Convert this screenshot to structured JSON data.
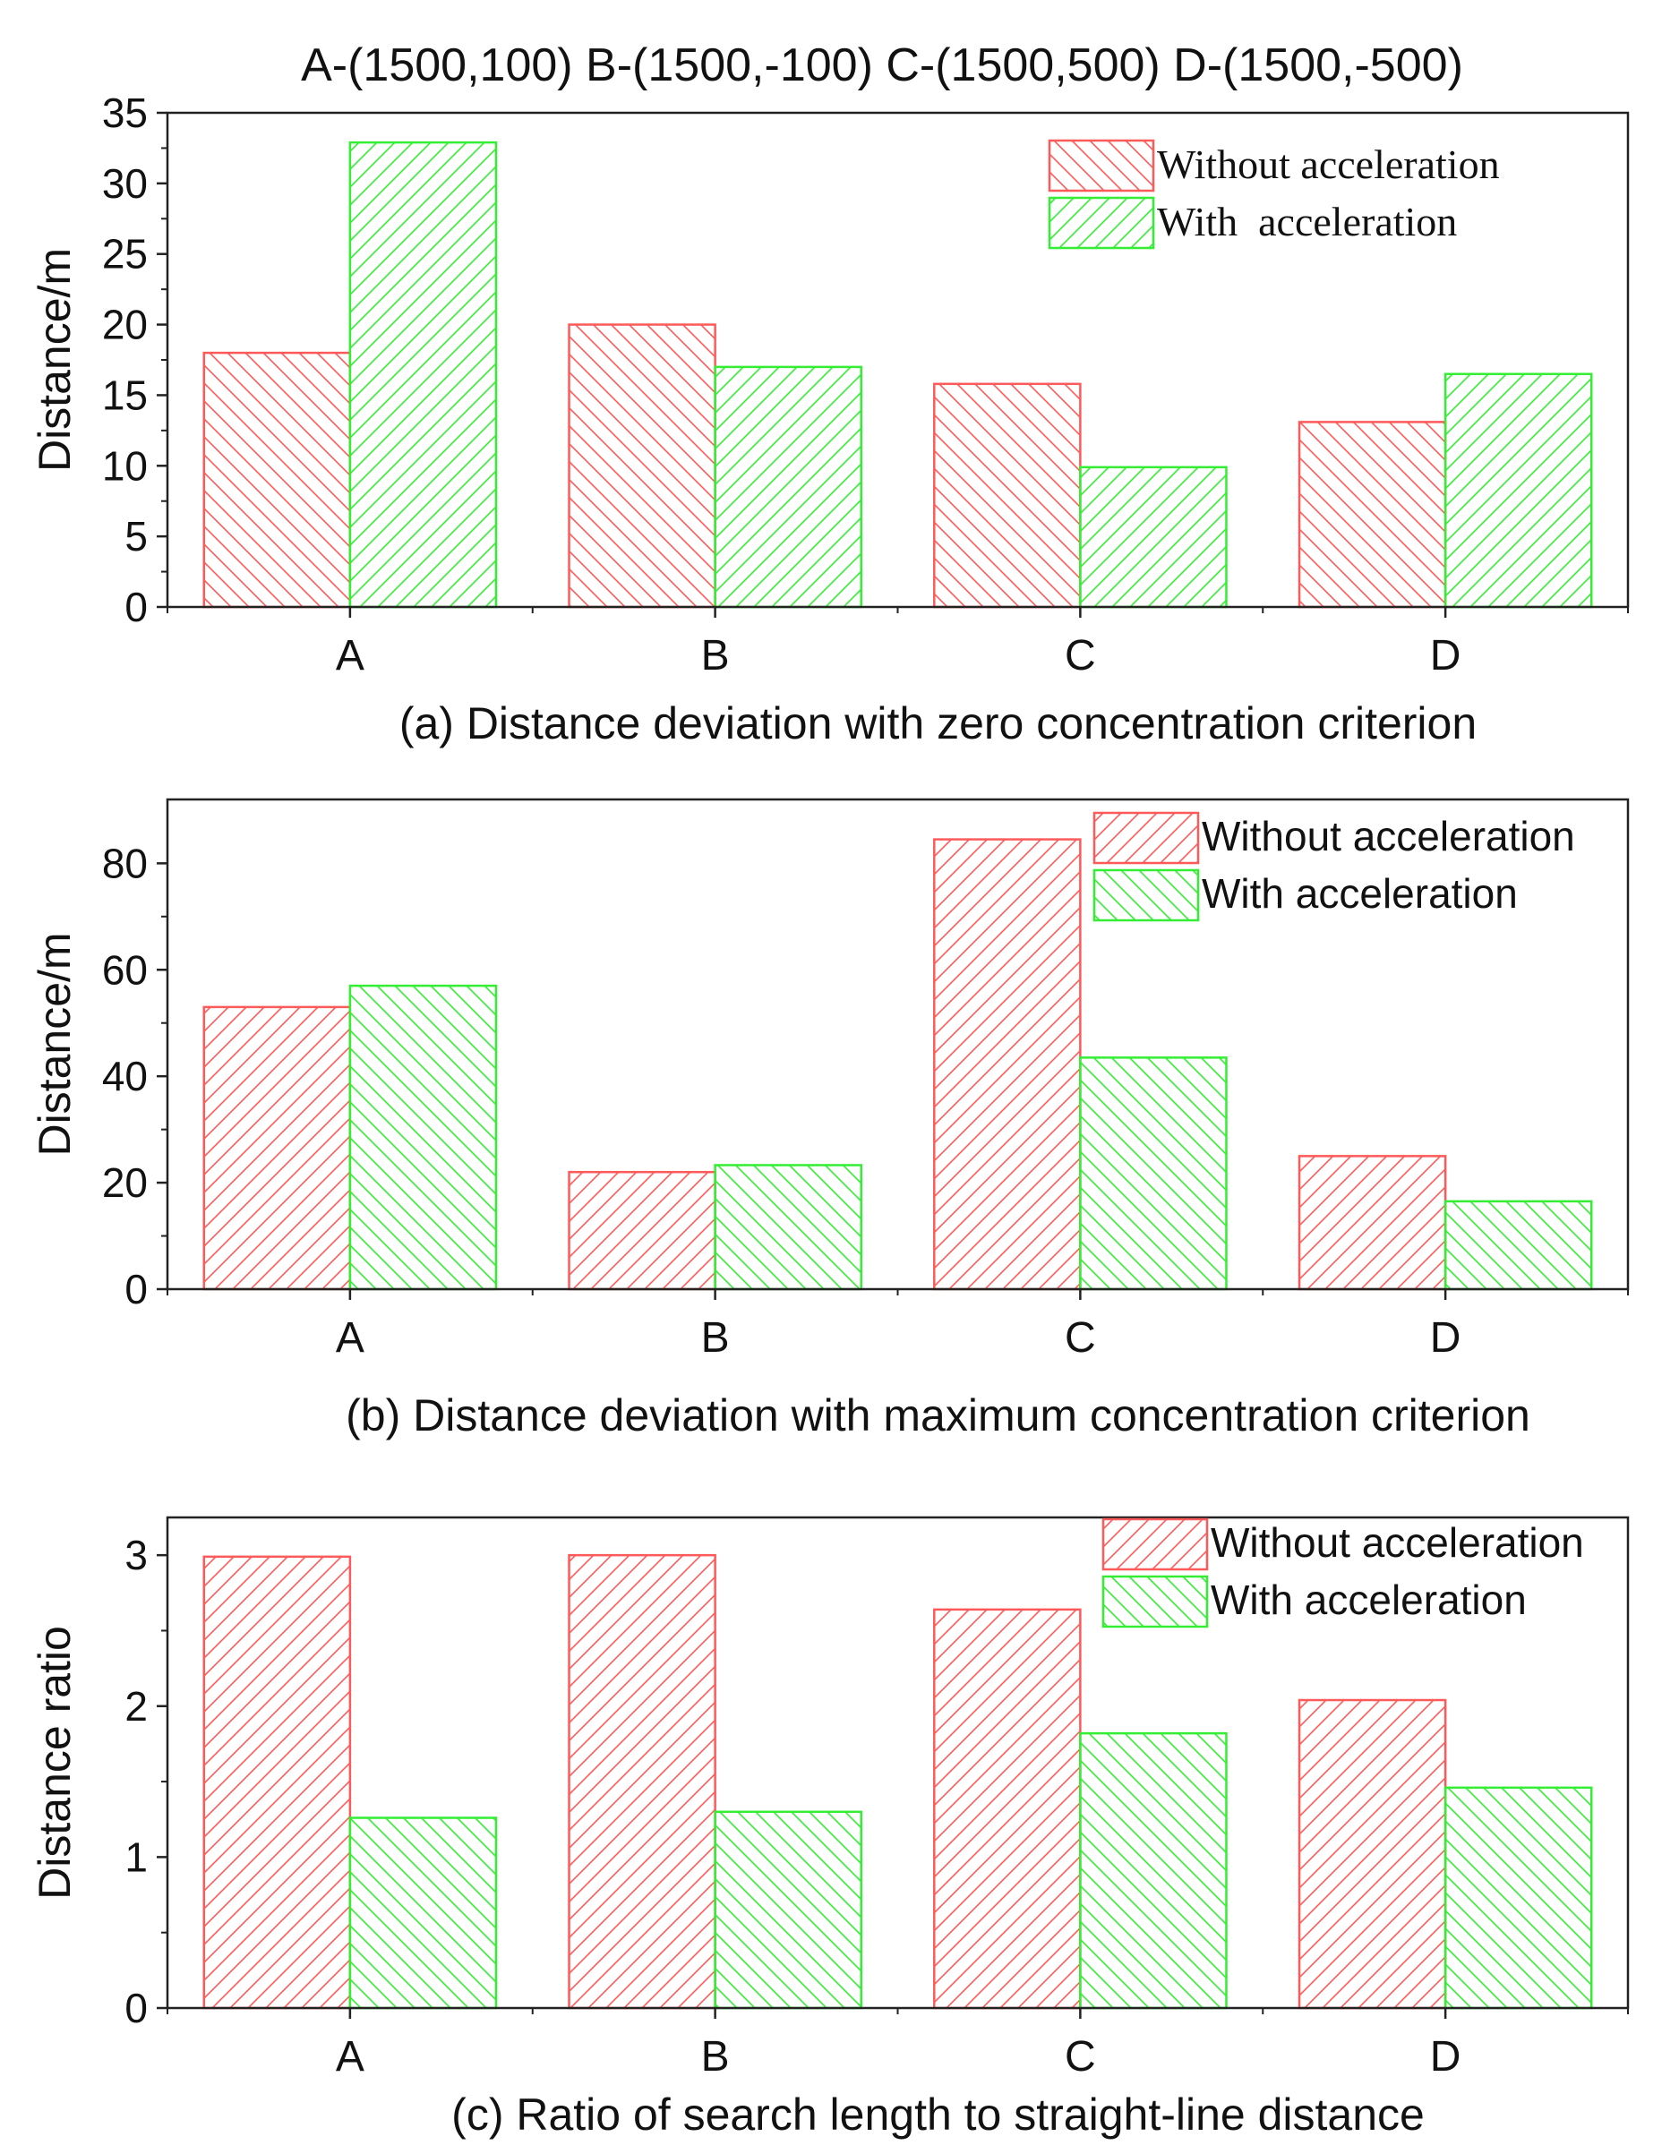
{
  "figure_title": "A-(1500,100) B-(1500,-100) C-(1500,500) D-(1500,-500)",
  "colors": {
    "without": "#ff5a5a",
    "with": "#33ee33",
    "axis": "#222222"
  },
  "chart_data": [
    {
      "type": "bar",
      "caption": "(a) Distance deviation with zero concentration criterion",
      "categories": [
        "A",
        "B",
        "C",
        "D"
      ],
      "ylabel": "Distance/m",
      "xlabel": "",
      "ylim": [
        0,
        35
      ],
      "yticks": [
        0,
        5,
        10,
        15,
        20,
        25,
        30,
        35
      ],
      "legend_position": "top-right",
      "series": [
        {
          "name": "Without acceleration",
          "values": [
            18,
            20,
            15.8,
            13.1
          ]
        },
        {
          "name": "With  acceleration",
          "values": [
            32.9,
            17,
            9.9,
            16.5
          ]
        }
      ]
    },
    {
      "type": "bar",
      "caption": "(b) Distance deviation with maximum concentration criterion",
      "categories": [
        "A",
        "B",
        "C",
        "D"
      ],
      "ylabel": "Distance/m",
      "xlabel": "",
      "ylim": [
        0,
        92
      ],
      "yticks": [
        0,
        20,
        40,
        60,
        80
      ],
      "legend_position": "top-right",
      "series": [
        {
          "name": "Without acceleration",
          "values": [
            53,
            22,
            84.5,
            25
          ]
        },
        {
          "name": "With acceleration",
          "values": [
            57,
            23.3,
            43.5,
            16.5
          ]
        }
      ]
    },
    {
      "type": "bar",
      "caption": "(c) Ratio of search length to  straight-line distance",
      "categories": [
        "A",
        "B",
        "C",
        "D"
      ],
      "ylabel": "Distance ratio",
      "xlabel": "",
      "ylim": [
        0,
        3.25
      ],
      "yticks": [
        0,
        1,
        2,
        3
      ],
      "legend_position": "top-right",
      "series": [
        {
          "name": "Without acceleration",
          "values": [
            2.99,
            3.0,
            2.64,
            2.04
          ]
        },
        {
          "name": "With acceleration",
          "values": [
            1.26,
            1.3,
            1.82,
            1.46
          ]
        }
      ]
    }
  ]
}
